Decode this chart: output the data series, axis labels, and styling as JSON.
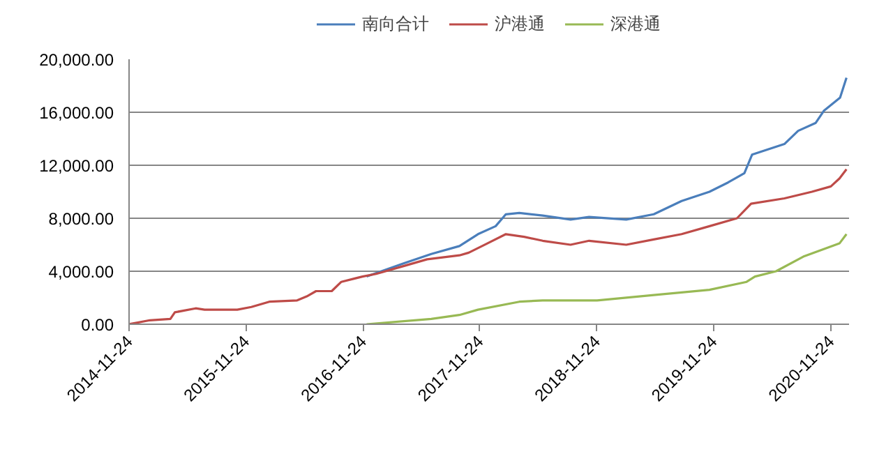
{
  "chart_data": {
    "type": "line",
    "legend": "top",
    "grid": "y",
    "xlim": [
      "2014-11-24",
      "2021-01-20"
    ],
    "ylim": [
      0,
      20000
    ],
    "xticks": [
      "2014-11-24",
      "2015-11-24",
      "2016-11-24",
      "2017-11-24",
      "2018-11-24",
      "2019-11-24",
      "2020-11-24"
    ],
    "yticks": [
      {
        "value": 0,
        "label": "0.00"
      },
      {
        "value": 4000,
        "label": "4,000.00"
      },
      {
        "value": 8000,
        "label": "8,000.00"
      },
      {
        "value": 12000,
        "label": "12,000.00"
      },
      {
        "value": 16000,
        "label": "16,000.00"
      },
      {
        "value": 20000,
        "label": "20,000.00"
      }
    ],
    "series": [
      {
        "name": "南向合计",
        "color": "#4a7ebb",
        "x": [
          "2016-12-05",
          "2017-04-01",
          "2017-06-25",
          "2017-09-21",
          "2017-11-18",
          "2018-01-12",
          "2018-02-13",
          "2018-03-27",
          "2018-06-08",
          "2018-09-03",
          "2018-10-31",
          "2019-02-24",
          "2019-05-21",
          "2019-08-16",
          "2019-11-11",
          "2020-01-08",
          "2020-02-28",
          "2020-03-23",
          "2020-07-02",
          "2020-08-14",
          "2020-10-08",
          "2020-11-02",
          "2020-12-23",
          "2021-01-12"
        ],
        "values": [
          3600,
          4600,
          5300,
          5900,
          6800,
          7400,
          8300,
          8400,
          8200,
          7900,
          8100,
          7900,
          8300,
          9300,
          10000,
          10700,
          11400,
          12800,
          13600,
          14600,
          15200,
          16100,
          17100,
          18600
        ]
      },
      {
        "name": "沪港通",
        "color": "#be4b48",
        "x": [
          "2014-11-24",
          "2015-01-28",
          "2015-04-02",
          "2015-04-16",
          "2015-06-20",
          "2015-07-18",
          "2015-10-28",
          "2015-12-11",
          "2016-02-05",
          "2016-05-02",
          "2016-06-01",
          "2016-06-30",
          "2016-08-18",
          "2016-09-17",
          "2016-11-22",
          "2017-01-04",
          "2017-04-01",
          "2017-06-12",
          "2017-09-21",
          "2017-10-20",
          "2017-12-17",
          "2018-02-13",
          "2018-04-11",
          "2018-06-08",
          "2018-09-03",
          "2018-10-31",
          "2019-02-24",
          "2019-05-21",
          "2019-08-16",
          "2019-11-11",
          "2020-02-05",
          "2020-03-20",
          "2020-07-02",
          "2020-09-26",
          "2020-11-24",
          "2020-12-21",
          "2021-01-12"
        ],
        "values": [
          0,
          300,
          400,
          900,
          1200,
          1100,
          1100,
          1300,
          1700,
          1800,
          2100,
          2500,
          2500,
          3200,
          3600,
          3800,
          4400,
          4900,
          5200,
          5400,
          6100,
          6800,
          6600,
          6300,
          6000,
          6300,
          6000,
          6400,
          6800,
          7400,
          8000,
          9100,
          9500,
          10000,
          10400,
          11000,
          11700
        ]
      },
      {
        "name": "深港通",
        "color": "#98b954",
        "x": [
          "2016-12-05",
          "2017-06-25",
          "2017-09-21",
          "2017-11-18",
          "2018-03-27",
          "2018-06-08",
          "2018-11-25",
          "2019-05-21",
          "2019-11-11",
          "2020-03-06",
          "2020-04-01",
          "2020-06-06",
          "2020-08-30",
          "2020-12-21",
          "2021-01-12"
        ],
        "values": [
          0,
          400,
          700,
          1100,
          1700,
          1800,
          1800,
          2200,
          2600,
          3200,
          3600,
          4000,
          5100,
          6100,
          6800
        ]
      }
    ]
  }
}
